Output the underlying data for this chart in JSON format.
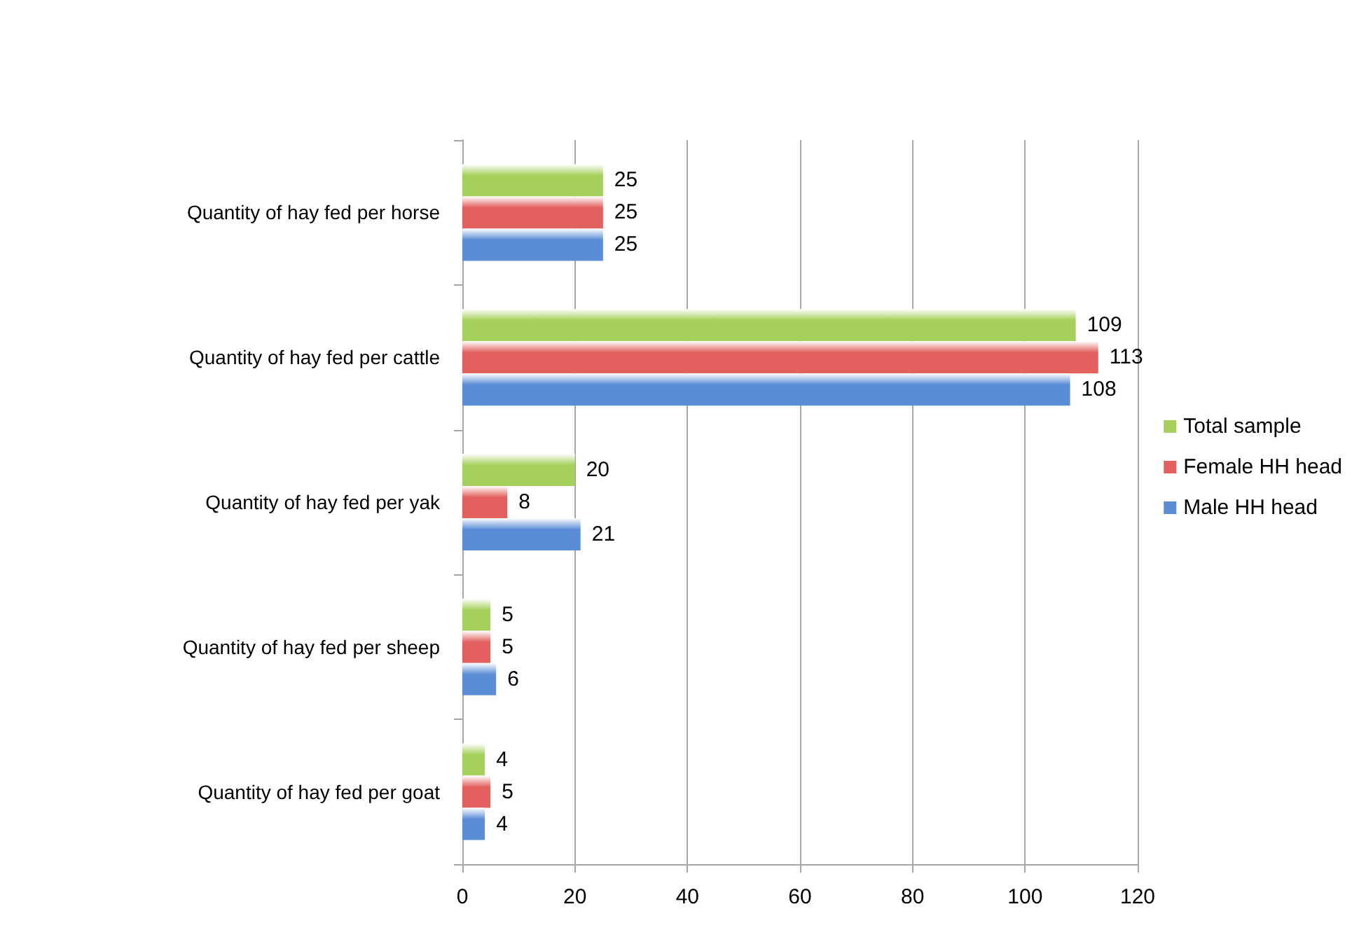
{
  "chart_data": {
    "type": "bar",
    "orientation": "horizontal",
    "categories": [
      "Quantity of hay fed per horse",
      "Quantity of hay fed per cattle",
      "Quantity of hay fed per yak",
      "Quantity of hay fed per sheep",
      "Quantity of hay fed per goat"
    ],
    "series": [
      {
        "name": "Total sample",
        "color": "#a6d05c",
        "values": [
          25,
          109,
          20,
          5,
          4
        ]
      },
      {
        "name": "Female HH head",
        "color": "#e2615e",
        "values": [
          25,
          113,
          8,
          5,
          5
        ]
      },
      {
        "name": "Male HH head",
        "color": "#5a8dd6",
        "values": [
          25,
          108,
          21,
          6,
          4
        ]
      }
    ],
    "xlim": [
      0,
      120
    ],
    "xticks": [
      0,
      20,
      40,
      60,
      80,
      100,
      120
    ],
    "grid": "x",
    "legend": "right",
    "data_labels": true
  }
}
